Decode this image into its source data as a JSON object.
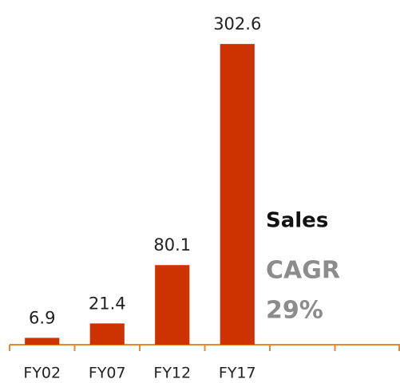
{
  "chart_data": {
    "type": "bar",
    "categories": [
      "FY02",
      "FY07",
      "FY12",
      "FY17",
      null,
      null
    ],
    "values": [
      6.9,
      21.4,
      80.1,
      302.6,
      null,
      null
    ],
    "color": "#cc3300",
    "axis_color": "#e8892f",
    "ylim": [
      0,
      330
    ],
    "annotations": [
      "Sales",
      "CAGR",
      "29%"
    ]
  }
}
